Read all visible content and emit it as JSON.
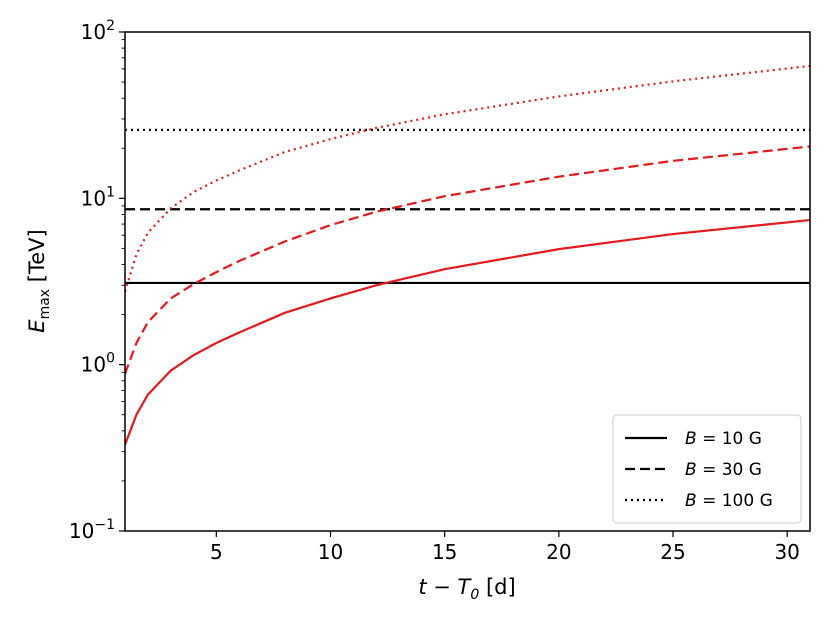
{
  "chart_data": {
    "type": "line",
    "xlabel": {
      "main": "t − T",
      "sub": "0",
      "tail": " [d]"
    },
    "ylabel": {
      "main": "E",
      "sub": "max",
      "tail": " [TeV]"
    },
    "xlim": [
      1,
      31
    ],
    "ylim": [
      0.1,
      100
    ],
    "yscale": "log",
    "grid": false,
    "legend_position": "lower right",
    "x_ticks": [
      {
        "value": 5,
        "label": "5"
      },
      {
        "value": 10,
        "label": "10"
      },
      {
        "value": 15,
        "label": "15"
      },
      {
        "value": 20,
        "label": "20"
      },
      {
        "value": 25,
        "label": "25"
      },
      {
        "value": 30,
        "label": "30"
      }
    ],
    "y_ticks": [
      {
        "value": 0.1,
        "base": "10",
        "exp": "−1"
      },
      {
        "value": 1,
        "base": "10",
        "exp": "0"
      },
      {
        "value": 10,
        "base": "10",
        "exp": "1"
      },
      {
        "value": 100,
        "base": "10",
        "exp": "2"
      }
    ],
    "series": [
      {
        "name": "B = 10 G",
        "legend_var": "B",
        "legend_rest": " = 10 G",
        "kind": "horizontal",
        "color": "#000000",
        "dash": "solid",
        "y": 3.1
      },
      {
        "name": "B = 30 G",
        "legend_var": "B",
        "legend_rest": " = 30 G",
        "kind": "horizontal",
        "color": "#000000",
        "dash": "dashed",
        "y": 8.6
      },
      {
        "name": "B = 100 G",
        "legend_var": "B",
        "legend_rest": " = 100 G",
        "kind": "horizontal",
        "color": "#000000",
        "dash": "dotted",
        "y": 25.8
      },
      {
        "kind": "curve",
        "color": "#e41a1c",
        "dash": "solid",
        "x": [
          1,
          1.5,
          2,
          3,
          4,
          5,
          6,
          8,
          10,
          12,
          15,
          20,
          25,
          31
        ],
        "y": [
          0.33,
          0.5,
          0.66,
          0.92,
          1.14,
          1.35,
          1.56,
          2.05,
          2.5,
          3.0,
          3.75,
          4.95,
          6.1,
          7.4
        ]
      },
      {
        "kind": "curve",
        "color": "#e41a1c",
        "dash": "dashed",
        "x": [
          1,
          1.5,
          2,
          3,
          4,
          5,
          6,
          8,
          10,
          12,
          15,
          20,
          25,
          31
        ],
        "y": [
          0.88,
          1.35,
          1.8,
          2.5,
          3.05,
          3.6,
          4.2,
          5.5,
          6.9,
          8.3,
          10.3,
          13.5,
          16.8,
          20.5
        ]
      },
      {
        "kind": "curve",
        "color": "#e41a1c",
        "dash": "dotted",
        "x": [
          1,
          1.5,
          2,
          3,
          4,
          5,
          6,
          8,
          10,
          12,
          15,
          20,
          25,
          31
        ],
        "y": [
          2.75,
          4.6,
          6.2,
          8.7,
          10.9,
          12.8,
          14.7,
          19.0,
          22.7,
          26.5,
          32.0,
          41.0,
          50.5,
          62.5
        ]
      }
    ]
  }
}
